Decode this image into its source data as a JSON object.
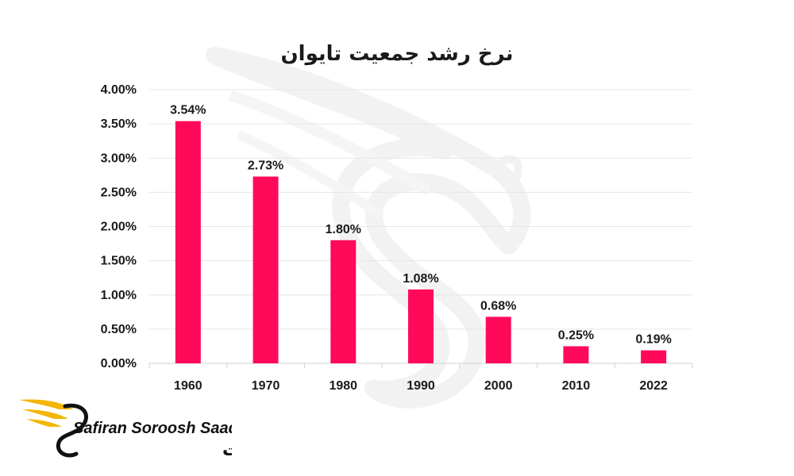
{
  "chart_data": {
    "type": "bar",
    "title": "نرخ رشد جمعیت تایوان",
    "xlabel": "",
    "ylabel": "",
    "categories": [
      "1960",
      "1970",
      "1980",
      "1990",
      "2000",
      "2010",
      "2022"
    ],
    "values": [
      3.54,
      2.73,
      1.8,
      1.08,
      0.68,
      0.25,
      0.19
    ],
    "data_labels": [
      "3.54%",
      "2.73%",
      "1.80%",
      "1.08%",
      "0.68%",
      "0.25%",
      "0.19%"
    ],
    "ylim": [
      0,
      4
    ],
    "yticks": [
      0,
      0.5,
      1,
      1.5,
      2,
      2.5,
      3,
      3.5,
      4
    ],
    "ytick_labels": [
      "0.00%",
      "0.50%",
      "1.00%",
      "1.50%",
      "2.00%",
      "2.50%",
      "3.00%",
      "3.50%",
      "4.00%"
    ],
    "grid": true,
    "bar_color": "#ff0a5a"
  },
  "watermark": {
    "icon": "swan-wing-icon",
    "color": "#e8e8e8"
  },
  "logo": {
    "icon": "swan-wing-icon",
    "brand_en": "Safiran Soroosh Saadat",
    "brand_fa": "سفیران سروش سعادت",
    "wing_color": "#f2b705"
  }
}
